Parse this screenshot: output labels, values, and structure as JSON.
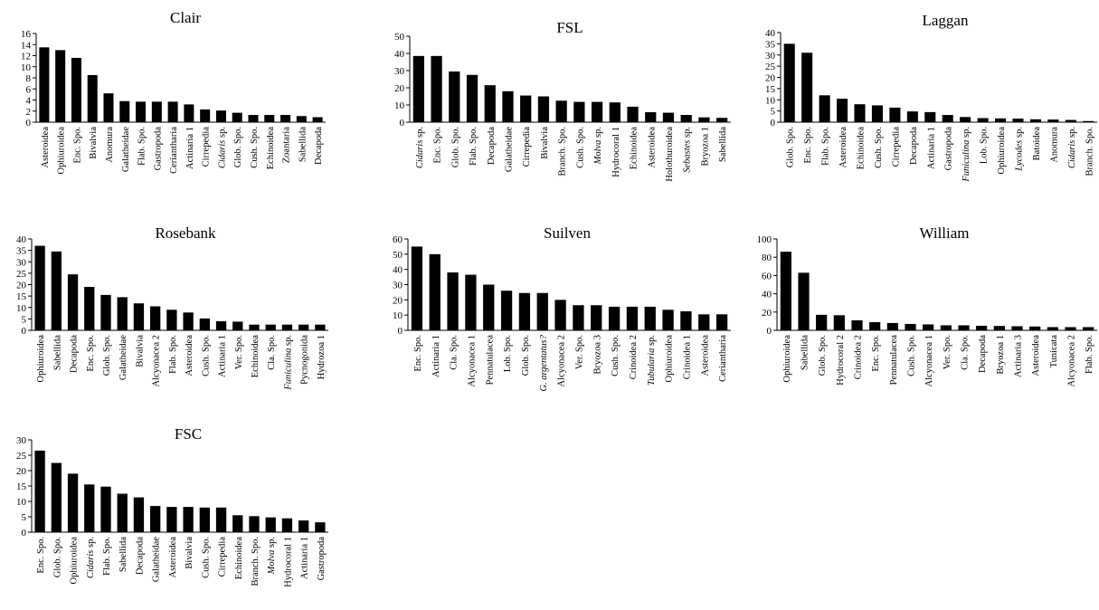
{
  "chart_data": [
    {
      "type": "bar",
      "title": "Clair",
      "ylim": [
        0,
        16
      ],
      "yticks": [
        0,
        2,
        4,
        6,
        8,
        10,
        12,
        14,
        16
      ],
      "categories": [
        "Asteroidea",
        "Ophiuroidea",
        "Enc. Spo.",
        "Bivalvia",
        "Anomura",
        "Galatheidae",
        "Flab. Spo.",
        "Gastropoda",
        "Ceriantharia",
        "Actinaria 1",
        "Cirrepedia",
        "Cidaris sp.",
        "Glob. Spo.",
        "Cush. Spo.",
        "Echinoidea",
        "Zoantaria",
        "Sabellida",
        "Decapoda"
      ],
      "italic": [
        "",
        "",
        "",
        "",
        "",
        "",
        "",
        "",
        "",
        "",
        "",
        "Cidaris",
        "",
        "",
        "",
        "",
        "",
        ""
      ],
      "values": [
        13.5,
        13,
        11.6,
        8.5,
        5.2,
        3.8,
        3.7,
        3.7,
        3.7,
        3.2,
        2.3,
        2.1,
        1.7,
        1.3,
        1.3,
        1.3,
        1.1,
        0.9
      ]
    },
    {
      "type": "bar",
      "title": "FSL",
      "ylim": [
        0,
        50
      ],
      "yticks": [
        0,
        10,
        20,
        30,
        40,
        50
      ],
      "categories": [
        "Cidaris sp.",
        "Enc. Spo.",
        "Glob. Spo.",
        "Flab. Spo.",
        "Decapoda",
        "Galatheidae",
        "Cirrepedia",
        "Bivalvia",
        "Branch. Spo.",
        "Cush. Spo.",
        "Molva sp.",
        "Hydrocoral 1",
        "Echinoidea",
        "Asteroidea",
        "Holothuroidea",
        "Sebastes sp.",
        "Bryozoa 1",
        "Sabellida"
      ],
      "italic": [
        "Cidaris",
        "",
        "",
        "",
        "",
        "",
        "",
        "",
        "",
        "",
        "Molva",
        "",
        "",
        "",
        "",
        "Sebastes",
        "",
        ""
      ],
      "values": [
        38.5,
        38.5,
        29.5,
        27.5,
        21.5,
        18,
        15.5,
        15,
        12.5,
        11.8,
        11.8,
        11.5,
        9,
        5.8,
        5.5,
        4.2,
        2.8,
        2.5
      ]
    },
    {
      "type": "bar",
      "title": "Laggan",
      "ylim": [
        0,
        40
      ],
      "yticks": [
        0,
        5,
        10,
        15,
        20,
        25,
        30,
        35,
        40
      ],
      "categories": [
        "Glob. Spo.",
        "Enc. Spo.",
        "Flab. Spo.",
        "Asteroidea",
        "Echinoidea",
        "Cush. Spo.",
        "Cirrepedia",
        "Decapoda",
        "Actinaria 1",
        "Gastropoda",
        "Funiculina sp.",
        "Lob. Spo.",
        "Ophiuroidea",
        "Lycodes sp.",
        "Batoidea",
        "Anomura",
        "Cidaris sp.",
        "Branch. Spo."
      ],
      "italic": [
        "",
        "",
        "",
        "",
        "",
        "",
        "",
        "",
        "",
        "",
        "Funiculina",
        "",
        "",
        "Lycodes",
        "",
        "",
        "Cidaris",
        ""
      ],
      "values": [
        35,
        31,
        12,
        10.5,
        8,
        7.5,
        6.5,
        4.8,
        4.5,
        3.2,
        2.3,
        1.8,
        1.7,
        1.6,
        1.3,
        1.2,
        1,
        0.5
      ]
    },
    {
      "type": "bar",
      "title": "Rosebank",
      "ylim": [
        0,
        40
      ],
      "yticks": [
        0,
        5,
        10,
        15,
        20,
        25,
        30,
        35,
        40
      ],
      "categories": [
        "Ophiuroidea",
        "Sabellida",
        "Decapoda",
        "Enc. Spo.",
        "Glob. Spo.",
        "Galatheidae",
        "Bivalvia",
        "Alcyonacea 2",
        "Flab. Spo.",
        "Asteroidea",
        "Cush. Spo.",
        "Actinaria 1",
        "Ver. Spo.",
        "Echinoidea",
        "Cla. Spo.",
        "Funiculina sp.",
        "Pycnogonida",
        "Hydrozoa 1"
      ],
      "italic": [
        "",
        "",
        "",
        "",
        "",
        "",
        "",
        "",
        "",
        "",
        "",
        "",
        "",
        "",
        "",
        "Funiculina",
        "",
        ""
      ],
      "values": [
        37,
        34.5,
        24.5,
        19,
        15.5,
        14.5,
        11.8,
        10.5,
        9,
        7.8,
        5.2,
        4,
        3.8,
        2.5,
        2.5,
        2.5,
        2.5,
        2.5
      ]
    },
    {
      "type": "bar",
      "title": "Suilven",
      "ylim": [
        0,
        60
      ],
      "yticks": [
        0,
        10,
        20,
        30,
        40,
        50,
        60
      ],
      "categories": [
        "Enc. Spo.",
        "Actinaria 1",
        "Cla. Spo.",
        "Alcyonacea 1",
        "Pennatulacea",
        "Lob. Spo.",
        "Glob. Spo.",
        "G. argentatus?",
        "Alcyonacea 2",
        "Ver. Spo.",
        "Bryozoa 3",
        "Cush. Spo.",
        "Crinoidea 2",
        "Tubularia sp.",
        "Ophiuroidea",
        "Crinoidea 1",
        "Asteroidea",
        "Ceriantharia"
      ],
      "italic": [
        "",
        "",
        "",
        "",
        "",
        "",
        "",
        "G. argentatus?",
        "",
        "",
        "",
        "",
        "",
        "Tubularia",
        "",
        "",
        "",
        ""
      ],
      "values": [
        55,
        50,
        38,
        36.5,
        30,
        26,
        24.5,
        24.5,
        20,
        16.5,
        16.5,
        15.5,
        15.5,
        15.5,
        13.5,
        12.5,
        10.5,
        10.5
      ]
    },
    {
      "type": "bar",
      "title": "William",
      "ylim": [
        0,
        100
      ],
      "yticks": [
        0,
        20,
        40,
        60,
        80,
        100
      ],
      "categories": [
        "Ophiuroidea",
        "Sabellida",
        "Glob. Spo.",
        "Hydrocoral 2",
        "Crinoidea 2",
        "Enc. Spo.",
        "Pennatulacea",
        "Cush. Spo.",
        "Alcyonacea 1",
        "Ver. Spo.",
        "Cla. Spo.",
        "Decapoda",
        "Bryozoa 1",
        "Actinaria 3",
        "Asteroidea",
        "Tunicata",
        "Alcyonacea 2",
        "Flab. Spo."
      ],
      "italic": [
        "",
        "",
        "",
        "",
        "",
        "",
        "",
        "",
        "",
        "",
        "",
        "",
        "",
        "",
        "",
        "",
        "",
        ""
      ],
      "values": [
        86,
        63,
        17,
        16.5,
        11,
        9,
        8,
        7,
        6.5,
        5.5,
        5.5,
        5,
        4.8,
        4.5,
        4.2,
        3.5,
        3.5,
        3.5
      ]
    },
    {
      "type": "bar",
      "title": "FSC",
      "ylim": [
        0,
        30
      ],
      "yticks": [
        0,
        5,
        10,
        15,
        20,
        25,
        30
      ],
      "categories": [
        "Enc. Spo.",
        "Glob. Spo.",
        "Ophiuroidea",
        "Cidaris sp.",
        "Flab. Spo.",
        "Sabellida",
        "Decapoda",
        "Galatheidae",
        "Asteroidea",
        "Bivalvia",
        "Cush. Spo.",
        "Cirrepedia",
        "Echinoidea",
        "Branch. Spo.",
        "Molva sp.",
        "Hydrocoral 1",
        "Actinaria 1",
        "Gastropoda"
      ],
      "italic": [
        "",
        "",
        "",
        "Cidaris",
        "",
        "",
        "",
        "",
        "",
        "",
        "",
        "",
        "",
        "",
        "Molva",
        "",
        "",
        ""
      ],
      "values": [
        26.5,
        22.5,
        19,
        15.5,
        14.8,
        12.5,
        11.3,
        8.5,
        8.2,
        8.2,
        8,
        8,
        5.5,
        5.2,
        4.8,
        4.5,
        3.8,
        3.2
      ]
    }
  ]
}
